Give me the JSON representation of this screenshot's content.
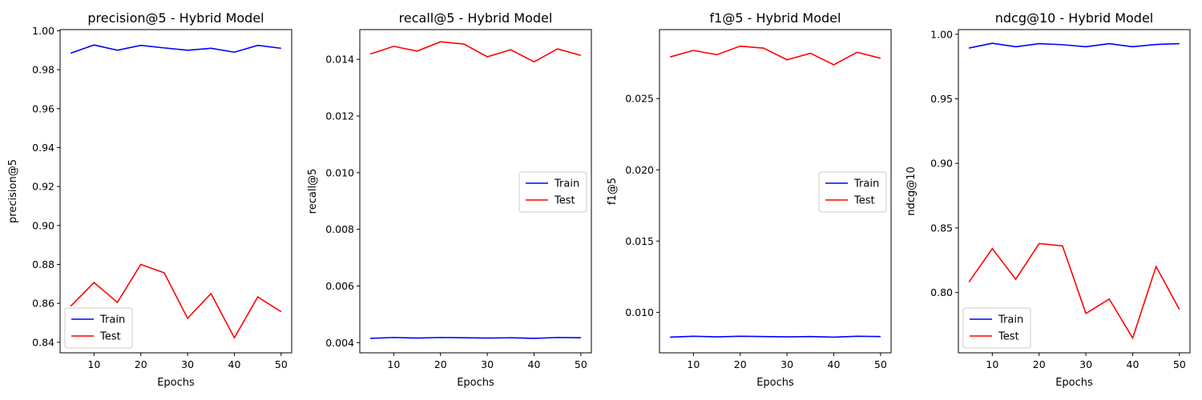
{
  "colors": {
    "train": "#0000ff",
    "test": "#ff0000"
  },
  "chart_data": [
    {
      "type": "line",
      "title": "precision@5 - Hybrid Model",
      "xlabel": "Epochs",
      "ylabel": "precision@5",
      "x": [
        5,
        10,
        15,
        20,
        25,
        30,
        35,
        40,
        45,
        50
      ],
      "xticks": [
        10,
        20,
        30,
        40,
        50
      ],
      "xlim": [
        2.75,
        52.25
      ],
      "yticks": [
        0.84,
        0.86,
        0.88,
        0.9,
        0.92,
        0.94,
        0.96,
        0.98,
        1.0
      ],
      "ytick_labels": [
        "0.84",
        "0.86",
        "0.88",
        "0.90",
        "0.92",
        "0.94",
        "0.96",
        "0.98",
        "1.00"
      ],
      "ylim": [
        0.8346,
        1.0006
      ],
      "legend": "lower-left",
      "series": [
        {
          "name": "Train",
          "color_key": "train",
          "values": [
            0.9885,
            0.9927,
            0.99,
            0.9925,
            0.9912,
            0.99,
            0.991,
            0.989,
            0.9925,
            0.991
          ]
        },
        {
          "name": "Test",
          "color_key": "test",
          "values": [
            0.8585,
            0.8707,
            0.8605,
            0.88,
            0.8757,
            0.8523,
            0.865,
            0.8423,
            0.8633,
            0.8557
          ]
        }
      ]
    },
    {
      "type": "line",
      "title": "recall@5 - Hybrid Model",
      "xlabel": "Epochs",
      "ylabel": "recall@5",
      "x": [
        5,
        10,
        15,
        20,
        25,
        30,
        35,
        40,
        45,
        50
      ],
      "xticks": [
        10,
        20,
        30,
        40,
        50
      ],
      "xlim": [
        2.75,
        52.25
      ],
      "yticks": [
        0.004,
        0.006,
        0.008,
        0.01,
        0.012,
        0.014
      ],
      "ytick_labels": [
        "0.004",
        "0.006",
        "0.008",
        "0.010",
        "0.012",
        "0.014"
      ],
      "ylim": [
        0.00364,
        0.01505
      ],
      "legend": "center-right",
      "series": [
        {
          "name": "Train",
          "color_key": "train",
          "values": [
            0.00415,
            0.00418,
            0.00416,
            0.00418,
            0.00417,
            0.00416,
            0.00417,
            0.00415,
            0.00418,
            0.00417
          ]
        },
        {
          "name": "Test",
          "color_key": "test",
          "values": [
            0.01419,
            0.01446,
            0.01429,
            0.01462,
            0.01454,
            0.01409,
            0.01434,
            0.01391,
            0.01437,
            0.01414
          ]
        }
      ]
    },
    {
      "type": "line",
      "title": "f1@5 - Hybrid Model",
      "xlabel": "Epochs",
      "ylabel": "f1@5",
      "x": [
        5,
        10,
        15,
        20,
        25,
        30,
        35,
        40,
        45,
        50
      ],
      "xticks": [
        10,
        20,
        30,
        40,
        50
      ],
      "xlim": [
        2.75,
        52.25
      ],
      "yticks": [
        0.01,
        0.015,
        0.02,
        0.025
      ],
      "ytick_labels": [
        "0.010",
        "0.015",
        "0.020",
        "0.025"
      ],
      "ylim": [
        0.00716,
        0.02984
      ],
      "legend": "center-right",
      "series": [
        {
          "name": "Train",
          "color_key": "train",
          "values": [
            0.00826,
            0.00832,
            0.00828,
            0.00832,
            0.0083,
            0.00828,
            0.0083,
            0.00826,
            0.00832,
            0.0083
          ]
        },
        {
          "name": "Test",
          "color_key": "test",
          "values": [
            0.02792,
            0.02838,
            0.02808,
            0.02868,
            0.02854,
            0.02772,
            0.02818,
            0.02737,
            0.02825,
            0.02783
          ]
        }
      ]
    },
    {
      "type": "line",
      "title": "ndcg@10 - Hybrid Model",
      "xlabel": "Epochs",
      "ylabel": "ndcg@10",
      "x": [
        5,
        10,
        15,
        20,
        25,
        30,
        35,
        40,
        45,
        50
      ],
      "xticks": [
        10,
        20,
        30,
        40,
        50
      ],
      "xlim": [
        2.75,
        52.25
      ],
      "yticks": [
        0.8,
        0.85,
        0.9,
        0.95,
        1.0
      ],
      "ytick_labels": [
        "0.80",
        "0.85",
        "0.90",
        "0.95",
        "1.00"
      ],
      "ylim": [
        0.7533,
        1.0036
      ],
      "legend": "lower-left",
      "series": [
        {
          "name": "Train",
          "color_key": "train",
          "values": [
            0.9893,
            0.993,
            0.9903,
            0.9927,
            0.9919,
            0.9903,
            0.9927,
            0.9903,
            0.9921,
            0.9927
          ]
        },
        {
          "name": "Test",
          "color_key": "test",
          "values": [
            0.8081,
            0.834,
            0.8102,
            0.8379,
            0.8361,
            0.7838,
            0.7949,
            0.7647,
            0.8201,
            0.7868
          ]
        }
      ]
    }
  ]
}
